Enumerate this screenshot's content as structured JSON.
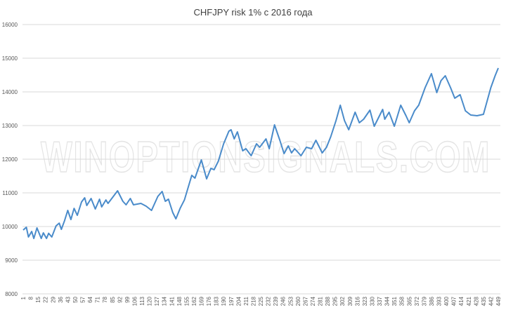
{
  "chart_data": {
    "type": "line",
    "title": "CHFJPY risk 1% с 2016 года",
    "watermark": "WINOPTIONSIGNALS.COM",
    "xlabel": "",
    "ylabel": "",
    "ylim": [
      8000,
      16000
    ],
    "yticks": [
      8000,
      9000,
      10000,
      11000,
      12000,
      13000,
      14000,
      15000,
      16000
    ],
    "xlim": [
      1,
      449
    ],
    "xtick_start": 1,
    "xtick_step": 7,
    "grid": true,
    "legend": "none",
    "line_color": "#4a8bca",
    "series": [
      {
        "x": [
          1,
          4,
          6,
          9,
          11,
          14,
          18,
          20,
          23,
          25,
          28,
          32,
          35,
          37,
          40,
          43,
          46,
          49,
          52,
          56,
          59,
          61,
          65,
          69,
          73,
          75,
          79,
          81,
          85,
          90,
          95,
          98,
          102,
          105,
          112,
          117,
          122,
          128,
          132,
          135,
          138,
          142,
          145,
          149,
          153,
          157,
          160,
          163,
          169,
          174,
          178,
          181,
          185,
          190,
          195,
          197,
          200,
          203,
          208,
          211,
          216,
          221,
          224,
          230,
          233,
          238,
          243,
          247,
          251,
          254,
          257,
          263,
          268,
          273,
          277,
          283,
          287,
          291,
          296,
          300,
          304,
          308,
          314,
          318,
          322,
          328,
          332,
          340,
          342,
          346,
          351,
          357,
          362,
          365,
          370,
          374,
          380,
          386,
          391,
          395,
          399,
          404,
          408,
          413,
          418,
          423,
          429,
          435,
          442,
          446,
          449
        ],
        "y": [
          9896,
          9980,
          9690,
          9854,
          9646,
          9958,
          9646,
          9812,
          9646,
          9800,
          9690,
          10020,
          10100,
          9917,
          10170,
          10480,
          10208,
          10540,
          10333,
          10730,
          10854,
          10625,
          10833,
          10520,
          10812,
          10583,
          10790,
          10687,
          10854,
          11062,
          10750,
          10646,
          10833,
          10646,
          10687,
          10604,
          10480,
          10896,
          11042,
          10750,
          10812,
          10417,
          10229,
          10540,
          10790,
          11208,
          11520,
          11437,
          11979,
          11417,
          11729,
          11687,
          11937,
          12458,
          12833,
          12875,
          12604,
          12812,
          12250,
          12312,
          12104,
          12458,
          12354,
          12604,
          12312,
          13020,
          12562,
          12167,
          12396,
          12187,
          12312,
          12104,
          12354,
          12312,
          12562,
          12187,
          12354,
          12667,
          13146,
          13604,
          13146,
          12875,
          13396,
          13083,
          13187,
          13458,
          12979,
          13479,
          13187,
          13396,
          12979,
          13604,
          13291,
          13083,
          13437,
          13604,
          14125,
          14541,
          13979,
          14333,
          14479,
          14125,
          13812,
          13916,
          13437,
          13312,
          13291,
          13333,
          14125,
          14479,
          14708
        ]
      }
    ]
  }
}
